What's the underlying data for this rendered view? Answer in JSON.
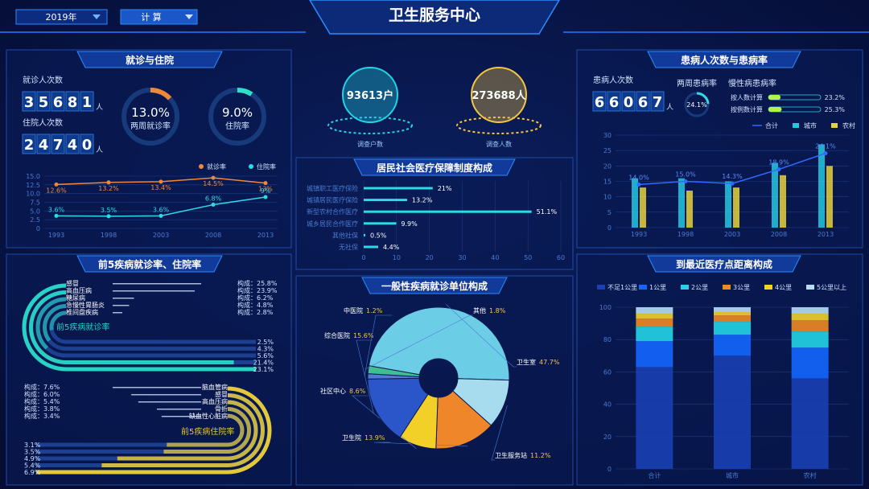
{
  "header": {
    "year": "2019年",
    "mode": "计 算",
    "title": "卫生服务中心"
  },
  "survey": [
    {
      "value": 93613,
      "unit": "户",
      "label": "调查户数",
      "color": "#22d3e6"
    },
    {
      "value": 273688,
      "unit": "人",
      "label": "调查人数",
      "color": "#f5c542"
    }
  ],
  "chart_data": [
    {
      "type": "line",
      "title": "就诊与住院",
      "kpis": [
        {
          "label": "就诊人次数",
          "value": 35681,
          "unit": "人"
        },
        {
          "label": "住院人次数",
          "value": 24740,
          "unit": "人"
        }
      ],
      "gauges": [
        {
          "name": "两周就诊率",
          "value": 13.0,
          "value_label": "13.0%",
          "color": "#f0883a"
        },
        {
          "name": "住院率",
          "value": 9.0,
          "value_label": "9.0%",
          "color": "#2fe0c8"
        }
      ],
      "categories": [
        "1993",
        "1998",
        "2003",
        "2008",
        "2013"
      ],
      "ylim": [
        0,
        15
      ],
      "yticks": [
        0,
        2.5,
        {
          "value": 5,
          "label": "5.0"
        },
        7.5,
        {
          "value": 10,
          "label": "10.0"
        },
        12.5,
        {
          "value": 15,
          "label": "15.0"
        }
      ],
      "series": [
        {
          "name": "就诊率",
          "color": "#f0883a",
          "values": [
            12.6,
            13.2,
            13.4,
            14.5,
            13
          ],
          "value_labels": [
            "12.6%",
            "13.2%",
            "13.4%",
            "14.5%",
            "13%"
          ]
        },
        {
          "name": "住院率",
          "color": "#2fd9e8",
          "values": [
            3.6,
            3.5,
            3.6,
            6.8,
            9
          ],
          "value_labels": [
            "3.6%",
            "3.5%",
            "3.6%",
            "6.8%",
            "9%"
          ]
        }
      ]
    },
    {
      "type": "hbar",
      "title": "居民社会医疗保障制度构成",
      "categories": [
        "城镇职工医疗保险",
        "城镇居民医疗保险",
        "新型农村合作医疗",
        "城乡居民合作医疗",
        "其他社保",
        "无社保"
      ],
      "values": [
        21,
        13.2,
        51.1,
        9.9,
        0.5,
        4.4
      ],
      "value_labels": [
        "21%",
        "13.2%",
        "51.1%",
        "9.9%",
        "0.5%",
        "4.4%"
      ],
      "xlim": [
        0,
        60
      ],
      "xticks": [
        0,
        10,
        20,
        30,
        40,
        50,
        60
      ],
      "color": "#2fd9e8"
    },
    {
      "type": "combo",
      "title": "患病人次数与患病率",
      "kpis": [
        {
          "label": "患病人次数",
          "value": 66067,
          "unit": "人"
        }
      ],
      "gauges": [
        {
          "name": "两周患病率",
          "value": 24.1,
          "value_label": "24.1%",
          "color": "#2fd9e8"
        }
      ],
      "chronic": {
        "title": "慢性病患病率",
        "items": [
          {
            "name": "按人数计算",
            "value": 23.2,
            "value_label": "23.2%"
          },
          {
            "name": "按例数计算",
            "value": 25.3,
            "value_label": "25.3%"
          }
        ]
      },
      "categories": [
        "1993",
        "1998",
        "2003",
        "2008",
        "2013"
      ],
      "ylim": [
        0,
        30
      ],
      "yticks": [
        0,
        5,
        10,
        15,
        20,
        25,
        30
      ],
      "series": [
        {
          "name": "合计",
          "type": "line",
          "color": "#2f6bff",
          "values": [
            14,
            15,
            14.3,
            18.9,
            24.1
          ],
          "value_labels": [
            "14.0%",
            "15.0%",
            "14.3%",
            "18.9%",
            "24.1%"
          ]
        },
        {
          "name": "城市",
          "type": "bar",
          "color": "#24c8e0",
          "values": [
            16,
            16,
            15,
            21,
            27
          ]
        },
        {
          "name": "农村",
          "type": "bar",
          "color": "#e8d23a",
          "values": [
            13,
            12,
            13,
            17,
            20
          ]
        }
      ]
    },
    {
      "type": "radial",
      "title": "前5疾病就诊率、住院率",
      "share_prefix": "构成：",
      "groups": [
        {
          "title": "前5疾病就诊率",
          "color": "#27d3c3",
          "categories": [
            "感冒",
            "高血压病",
            "糖尿病",
            "急慢性胃肠炎",
            "椎间盘疾病"
          ],
          "shares": [
            25.8,
            23.9,
            6.2,
            4.8,
            2.8
          ],
          "share_labels": [
            "25.8%",
            "23.9%",
            "6.2%",
            "4.8%",
            "2.8%"
          ],
          "rates": [
            2.5,
            4.3,
            5.6,
            21.4,
            23.1
          ],
          "rate_labels": [
            "2.5%",
            "4.3%",
            "5.6%",
            "21.4%",
            "23.1%"
          ]
        },
        {
          "title": "前5疾病住院率",
          "color": "#e3c83a",
          "categories": [
            "脑血管病",
            "感冒",
            "高血压病",
            "骨折",
            "缺血性心脏病"
          ],
          "shares": [
            7.6,
            6.0,
            5.4,
            3.8,
            3.4
          ],
          "share_labels": [
            "7.6%",
            "6.0%",
            "5.4%",
            "3.8%",
            "3.4%"
          ],
          "rates": [
            3.1,
            3.5,
            4.9,
            5.4,
            6.9
          ],
          "rate_labels": [
            "3.1%",
            "3.5%",
            "4.9%",
            "5.4%",
            "6.9%"
          ]
        }
      ]
    },
    {
      "type": "pie",
      "title": "一般性疾病就诊单位构成",
      "categories": [
        "卫生室",
        "卫生服务站",
        "卫生院",
        "社区中心",
        "综合医院",
        "中医院",
        "其他"
      ],
      "values": [
        47.7,
        11.2,
        13.9,
        8.6,
        15.6,
        1.2,
        1.8
      ],
      "value_labels": [
        "47.7%",
        "11.2%",
        "13.9%",
        "8.6%",
        "15.6%",
        "1.2%",
        "1.8%"
      ],
      "colors": [
        "#6ccde6",
        "#a7dcef",
        "#f0862a",
        "#f2d027",
        "#2a56c9",
        "#4d7bd8",
        "#3fbf8f"
      ]
    },
    {
      "type": "stacked-bar",
      "title": "到最近医疗点距离构成",
      "categories": [
        "合计",
        "城市",
        "农村"
      ],
      "ylim": [
        0,
        100
      ],
      "yticks": [
        0,
        20,
        40,
        60,
        80,
        100
      ],
      "series": [
        {
          "name": "不足1公里",
          "color": "#1b3fb5",
          "values": [
            63,
            70,
            56
          ]
        },
        {
          "name": "1公里",
          "color": "#1466ff",
          "values": [
            16,
            13,
            19
          ]
        },
        {
          "name": "2公里",
          "color": "#22d5e6",
          "values": [
            9,
            8,
            10
          ]
        },
        {
          "name": "3公里",
          "color": "#f08a24",
          "values": [
            5,
            4,
            7
          ]
        },
        {
          "name": "4公里",
          "color": "#f3d12b",
          "values": [
            3,
            2,
            4
          ]
        },
        {
          "name": "5公里以上",
          "color": "#b8dcf2",
          "values": [
            4,
            3,
            4
          ]
        }
      ]
    }
  ]
}
